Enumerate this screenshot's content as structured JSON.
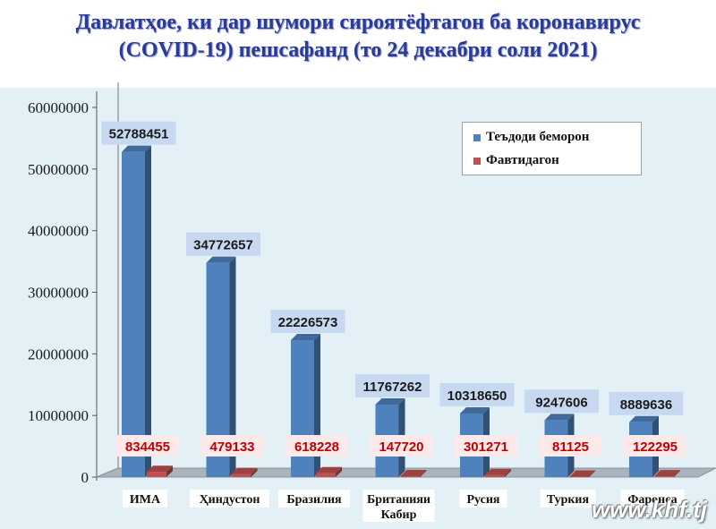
{
  "title_line1": "Давлатҳое, ки дар шумори сироятёфтагон ба коронавирус",
  "title_line2": "(COVID-19) пешсафанд (то 24 декабри соли 2021)",
  "watermark": "www.khf.tj",
  "colors": {
    "series1": "#4f81bd",
    "series2": "#c0504d",
    "title": "#2a3a9c",
    "plot_bg": "#e3f1f6"
  },
  "chart_data": {
    "type": "bar",
    "categories": [
      "ИМА",
      "Ҳиндустон",
      "Бразилия",
      "Британияи Кабир",
      "Русия",
      "Туркия",
      "Фаронса"
    ],
    "series": [
      {
        "name": "Теъдоди беморон",
        "values": [
          52788451,
          34772657,
          22226573,
          11767262,
          10318650,
          9247606,
          8889636
        ]
      },
      {
        "name": "Фавтидагон",
        "values": [
          834455,
          479133,
          618228,
          147720,
          301271,
          81125,
          122295
        ]
      }
    ],
    "yticks": [
      "0",
      "10000000",
      "20000000",
      "30000000",
      "40000000",
      "50000000",
      "60000000"
    ],
    "ylim": [
      0,
      60000000
    ],
    "legend_position": "top-right",
    "style": "3d-columns"
  }
}
